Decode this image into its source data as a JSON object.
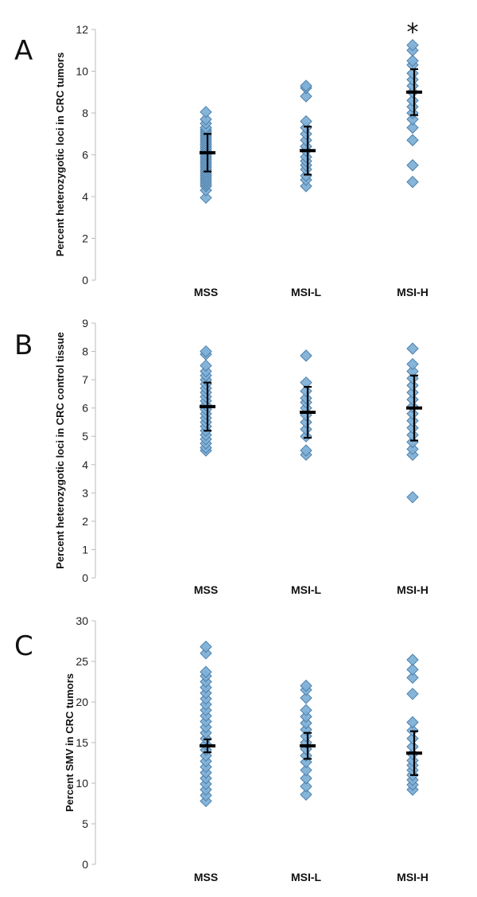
{
  "colors": {
    "marker_fill": "#7fb1d8",
    "marker_stroke": "#4d7ea8",
    "mean_bar": "#000000",
    "axis": "#bbbbbb"
  },
  "chart_data": [
    {
      "type": "scatter",
      "panel": "A",
      "categories": [
        "MSS",
        "MSI-L",
        "MSI-H"
      ],
      "ylabel": "Percent heterozygotic loci in CRC tumors",
      "ylim": [
        0,
        12
      ],
      "yticks": [
        0,
        2,
        4,
        6,
        8,
        10,
        12
      ],
      "annotation": "*",
      "annotation_category": "MSI-H",
      "series": [
        {
          "category": "MSS",
          "mean": 6.1,
          "sd": 0.9,
          "values": [
            3.95,
            4.3,
            4.5,
            4.6,
            4.7,
            4.8,
            4.9,
            5.0,
            5.1,
            5.2,
            5.3,
            5.4,
            5.5,
            5.6,
            5.7,
            5.8,
            5.9,
            6.0,
            6.1,
            6.2,
            6.3,
            6.4,
            6.5,
            6.6,
            6.7,
            6.8,
            6.9,
            7.0,
            7.1,
            7.2,
            7.3,
            7.5,
            7.7,
            8.05
          ]
        },
        {
          "category": "MSI-L",
          "mean": 6.2,
          "sd": 1.15,
          "values": [
            4.5,
            4.8,
            5.0,
            5.3,
            5.5,
            5.7,
            5.9,
            6.2,
            6.4,
            6.7,
            7.0,
            7.3,
            7.6,
            8.8,
            9.2,
            9.3
          ]
        },
        {
          "category": "MSI-H",
          "mean": 9.0,
          "sd": 1.1,
          "values": [
            4.7,
            5.5,
            6.7,
            7.3,
            7.7,
            8.0,
            8.3,
            8.6,
            9.0,
            9.3,
            9.6,
            9.9,
            10.3,
            10.5,
            11.0,
            11.25
          ]
        }
      ]
    },
    {
      "type": "scatter",
      "panel": "B",
      "categories": [
        "MSS",
        "MSI-L",
        "MSI-H"
      ],
      "ylabel": "Percent heterozygotic loci in CRC control tissue",
      "ylim": [
        0,
        9
      ],
      "yticks": [
        0,
        1,
        2,
        3,
        4,
        5,
        6,
        7,
        8,
        9
      ],
      "series": [
        {
          "category": "MSS",
          "mean": 6.05,
          "sd": 0.85,
          "values": [
            4.5,
            4.6,
            4.75,
            4.9,
            5.05,
            5.2,
            5.35,
            5.5,
            5.65,
            5.8,
            5.95,
            6.1,
            6.25,
            6.4,
            6.55,
            6.7,
            6.85,
            7.0,
            7.15,
            7.3,
            7.5,
            7.9,
            8.0
          ]
        },
        {
          "category": "MSI-L",
          "mean": 5.85,
          "sd": 0.9,
          "values": [
            4.35,
            4.5,
            5.0,
            5.25,
            5.5,
            5.75,
            6.0,
            6.2,
            6.35,
            6.6,
            6.9,
            7.85
          ]
        },
        {
          "category": "MSI-H",
          "mean": 6.0,
          "sd": 1.15,
          "values": [
            2.85,
            4.35,
            4.55,
            4.8,
            5.05,
            5.3,
            5.55,
            5.8,
            6.05,
            6.3,
            6.55,
            6.8,
            7.05,
            7.3,
            7.55,
            8.1
          ]
        }
      ]
    },
    {
      "type": "scatter",
      "panel": "C",
      "categories": [
        "MSS",
        "MSI-L",
        "MSI-H"
      ],
      "ylabel": "Percent SMV in CRC tumors",
      "ylim": [
        0,
        30
      ],
      "yticks": [
        0,
        5,
        10,
        15,
        20,
        25,
        30
      ],
      "series": [
        {
          "category": "MSS",
          "mean": 14.6,
          "sd": 0.8,
          "values": [
            7.8,
            8.5,
            9.2,
            9.9,
            10.6,
            11.3,
            12.0,
            12.7,
            13.4,
            14.1,
            14.8,
            15.5,
            16.2,
            16.9,
            17.6,
            18.3,
            19.0,
            19.7,
            20.4,
            21.1,
            21.8,
            22.5,
            23.2,
            23.7,
            26.0,
            26.8
          ]
        },
        {
          "category": "MSI-L",
          "mean": 14.6,
          "sd": 1.6,
          "values": [
            8.6,
            9.6,
            10.6,
            11.6,
            12.6,
            13.4,
            14.2,
            15.0,
            15.8,
            16.6,
            17.4,
            18.2,
            19.0,
            20.5,
            21.5,
            22.0
          ]
        },
        {
          "category": "MSI-H",
          "mean": 13.7,
          "sd": 2.7,
          "values": [
            9.2,
            9.8,
            10.4,
            11.0,
            11.6,
            12.2,
            12.8,
            13.6,
            14.5,
            15.5,
            16.5,
            17.5,
            21.0,
            23.0,
            24.0,
            25.2
          ]
        }
      ]
    }
  ]
}
